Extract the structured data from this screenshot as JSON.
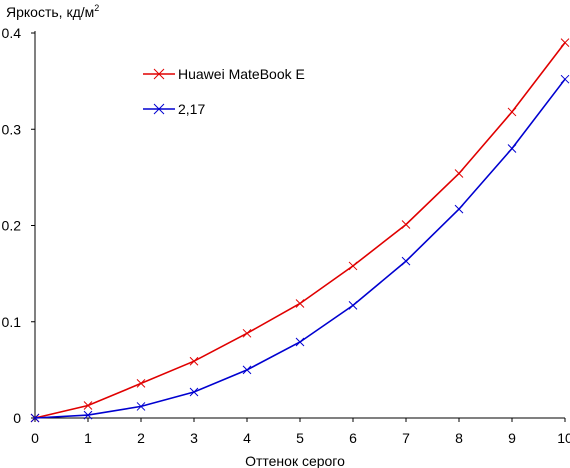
{
  "chart_data": {
    "type": "line",
    "ylabel": "Яркость, кд/м",
    "ylabel_superscript": "2",
    "xlabel": "Оттенок серого",
    "xlim": [
      0,
      10
    ],
    "ylim": [
      0,
      0.4
    ],
    "x_ticks": [
      "0",
      "1",
      "2",
      "3",
      "4",
      "5",
      "6",
      "7",
      "8",
      "9",
      "10"
    ],
    "y_ticks": [
      "0",
      "0.1",
      "0.2",
      "0.3",
      "0.4"
    ],
    "grid": false,
    "legend_position": "top-left",
    "x": [
      0,
      1,
      2,
      3,
      4,
      5,
      6,
      7,
      8,
      9,
      10
    ],
    "series": [
      {
        "name": "Huawei MateBook E",
        "color": "#e00000",
        "marker": "x",
        "values": [
          0.0,
          0.013,
          0.036,
          0.059,
          0.088,
          0.119,
          0.158,
          0.201,
          0.254,
          0.318,
          0.39
        ]
      },
      {
        "name": "2,17",
        "color": "#0000d0",
        "marker": "x",
        "values": [
          0.0,
          0.003,
          0.012,
          0.027,
          0.05,
          0.079,
          0.117,
          0.163,
          0.217,
          0.28,
          0.352
        ]
      }
    ]
  }
}
